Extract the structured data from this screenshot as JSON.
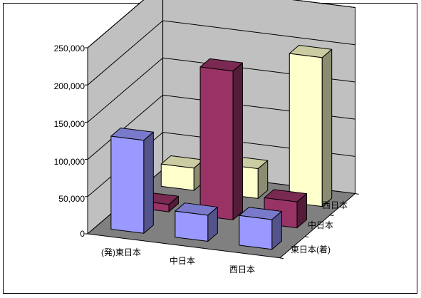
{
  "chart_data": {
    "type": "bar",
    "subtype": "3d-column",
    "title": "",
    "xlabel": "",
    "ylabel": "",
    "categories": [
      "(発)東日本",
      "中日本",
      "西日本"
    ],
    "series": [
      {
        "name": "東日本(着)",
        "values": [
          125000,
          35000,
          40000
        ],
        "color": "#9999ff"
      },
      {
        "name": "中日本",
        "values": [
          10000,
          200000,
          35000
        ],
        "color": "#993366"
      },
      {
        "name": "西日本",
        "values": [
          30000,
          40000,
          200000
        ],
        "color": "#ffffcc"
      }
    ],
    "y_ticks": [
      "0",
      "50,000",
      "100,000",
      "150,000",
      "200,000",
      "250,000"
    ],
    "ylim": [
      0,
      250000
    ],
    "grid": true,
    "legend": "none"
  }
}
